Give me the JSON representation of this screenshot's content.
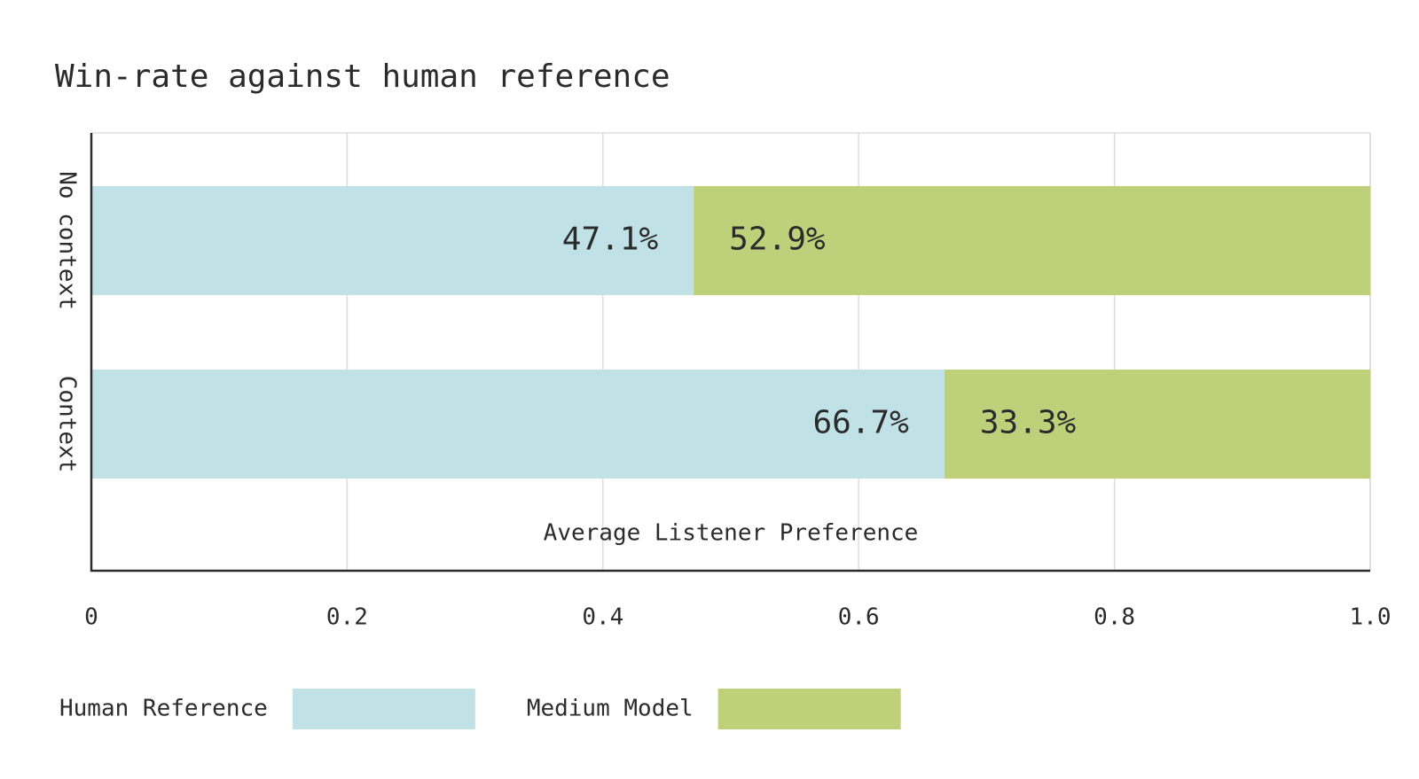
{
  "chart_data": {
    "type": "stacked-barh",
    "title": "Win-rate against human reference",
    "categories": [
      "No context",
      "Context"
    ],
    "series": [
      {
        "name": "Human Reference",
        "color": "#c0e2e6",
        "values": [
          0.471,
          0.667
        ],
        "value_labels": [
          "47.1%",
          "66.7%"
        ]
      },
      {
        "name": "Medium Model",
        "color": "#bfd07a",
        "values": [
          0.529,
          0.333
        ],
        "value_labels": [
          "52.9%",
          "33.3%"
        ]
      }
    ],
    "xlabel": "Average Listener Preference",
    "xlim": [
      0,
      1
    ],
    "xticks": [
      0,
      0.2,
      0.4,
      0.6,
      0.8,
      {
        "value": 1,
        "label": "1.0"
      }
    ],
    "grid": true
  }
}
